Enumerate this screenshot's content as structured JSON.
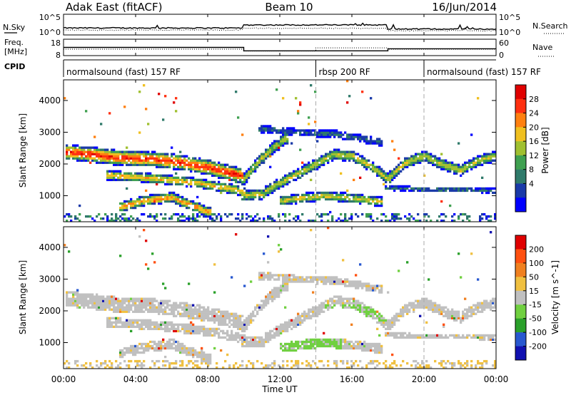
{
  "header": {
    "title": "Adak East (fitACF)",
    "beam": "Beam 10",
    "date": "16/Jun/2014"
  },
  "side_labels": {
    "nsky": "N.Sky",
    "nsearch": "N.Search",
    "freq_line1": "Freq.",
    "freq_line2": "[MHz]",
    "nave": "Nave",
    "cpid": "CPID"
  },
  "chart_data": {
    "type": "heatmap",
    "x_axis": {
      "label": "Time UT",
      "range_hours": [
        0,
        24
      ],
      "ticks": [
        "00:00",
        "04:00",
        "08:00",
        "12:00",
        "16:00",
        "20:00",
        "00:00"
      ]
    },
    "noise_panel": {
      "left_ticks": [
        "10^5",
        "10^0"
      ],
      "right_ticks": [
        "10^5",
        "10^0"
      ]
    },
    "freq_panel": {
      "left_ticks": [
        "18",
        "8"
      ],
      "right_ticks": [
        "60",
        "0"
      ],
      "freq_mhz": [
        {
          "start": 0,
          "end": 10,
          "value": 13
        },
        {
          "start": 10,
          "end": 14,
          "value": 10.5
        },
        {
          "start": 14,
          "end": 18,
          "value": 10.5
        },
        {
          "start": 18,
          "end": 24,
          "value": 12
        }
      ],
      "nave": [
        {
          "start": 0,
          "end": 10,
          "value": 22
        },
        {
          "start": 10,
          "end": 14,
          "value": 14
        },
        {
          "start": 14,
          "end": 18,
          "value": 28
        },
        {
          "start": 18,
          "end": 24,
          "value": 22
        }
      ]
    },
    "cpid_segments": [
      {
        "start": 0,
        "end": 14,
        "label": "normalsound (fast) 157 RF"
      },
      {
        "start": 14,
        "end": 20,
        "label": "rbsp 200 RF"
      },
      {
        "start": 20,
        "end": 24,
        "label": "normalsound (fast) 157 RF"
      }
    ],
    "y_axis": {
      "label": "Slant Range [km]",
      "range_km": [
        180,
        4650
      ],
      "ticks": [
        1000,
        2000,
        3000,
        4000
      ]
    },
    "power": {
      "colorbar_label": "Power [dB]",
      "color_ticks": [
        "28",
        "24",
        "20",
        "16",
        "12",
        "8",
        "4"
      ],
      "colors": [
        "#0000ff",
        "#1a3aa8",
        "#2f7a6a",
        "#3fa050",
        "#a0c030",
        "#f0c020",
        "#ff8010",
        "#ff3010",
        "#e00000"
      ]
    },
    "velocity": {
      "colorbar_label": "Velocity [m s^-1]",
      "color_ticks": [
        "200",
        "100",
        "50",
        "15",
        "-15",
        "-50",
        "-100",
        "-200"
      ],
      "colors": [
        "#1010b0",
        "#2858d0",
        "#2aa02a",
        "#70d040",
        "#c0c0c0",
        "#f0c040",
        "#f08020",
        "#ff5010",
        "#e00000"
      ]
    },
    "echo_bands": [
      {
        "name": "",
        "points": [
          [
            0.3,
            2380
          ],
          [
            1.5,
            2300
          ],
          [
            3,
            2200
          ],
          [
            5,
            2150
          ],
          [
            6.5,
            2050
          ],
          [
            8,
            1900
          ],
          [
            9,
            1750
          ],
          [
            9.8,
            1650
          ]
        ],
        "width": 240,
        "pmax": 27
      },
      {
        "name": "",
        "points": [
          [
            2.5,
            1650
          ],
          [
            5,
            1550
          ],
          [
            7.5,
            1400
          ],
          [
            9.5,
            1200
          ],
          [
            10,
            1100
          ]
        ],
        "width": 150,
        "pmax": 20
      },
      {
        "name": "",
        "points": [
          [
            3.2,
            650
          ],
          [
            4.5,
            850
          ],
          [
            6,
            950
          ],
          [
            7.3,
            650
          ],
          [
            8,
            500
          ]
        ],
        "width": 160,
        "pmax": 22
      },
      {
        "name": "",
        "points": [
          [
            10,
            1500
          ],
          [
            11,
            2200
          ],
          [
            11.8,
            2600
          ],
          [
            12.3,
            2800
          ]
        ],
        "width": 180,
        "pmax": 17
      },
      {
        "name": "",
        "points": [
          [
            10,
            1000
          ],
          [
            11,
            1050
          ],
          [
            12,
            1400
          ],
          [
            13,
            1700
          ],
          [
            14,
            2000
          ],
          [
            15,
            2300
          ],
          [
            16,
            2250
          ],
          [
            17,
            1950
          ],
          [
            18,
            1550
          ]
        ],
        "width": 170,
        "pmax": 17
      },
      {
        "name": "",
        "points": [
          [
            12.2,
            850
          ],
          [
            13.5,
            950
          ],
          [
            14.5,
            1000
          ],
          [
            15.5,
            950
          ],
          [
            16.5,
            900
          ],
          [
            17.5,
            820
          ]
        ],
        "width": 150,
        "pmax": 18
      },
      {
        "name": "",
        "points": [
          [
            18,
            1550
          ],
          [
            19,
            2050
          ],
          [
            20,
            2250
          ],
          [
            21,
            2000
          ],
          [
            22,
            1800
          ],
          [
            23,
            2100
          ],
          [
            24,
            2250
          ]
        ],
        "width": 170,
        "pmax": 17
      },
      {
        "name": "",
        "points": [
          [
            18,
            1250
          ],
          [
            20,
            1200
          ],
          [
            22,
            1200
          ],
          [
            24,
            1150
          ]
        ],
        "width": 80,
        "pmax": 8
      },
      {
        "name": "",
        "points": [
          [
            11,
            3100
          ],
          [
            13,
            3000
          ],
          [
            15,
            2950
          ],
          [
            17.5,
            2700
          ]
        ],
        "width": 120,
        "pmax": 7
      }
    ]
  }
}
